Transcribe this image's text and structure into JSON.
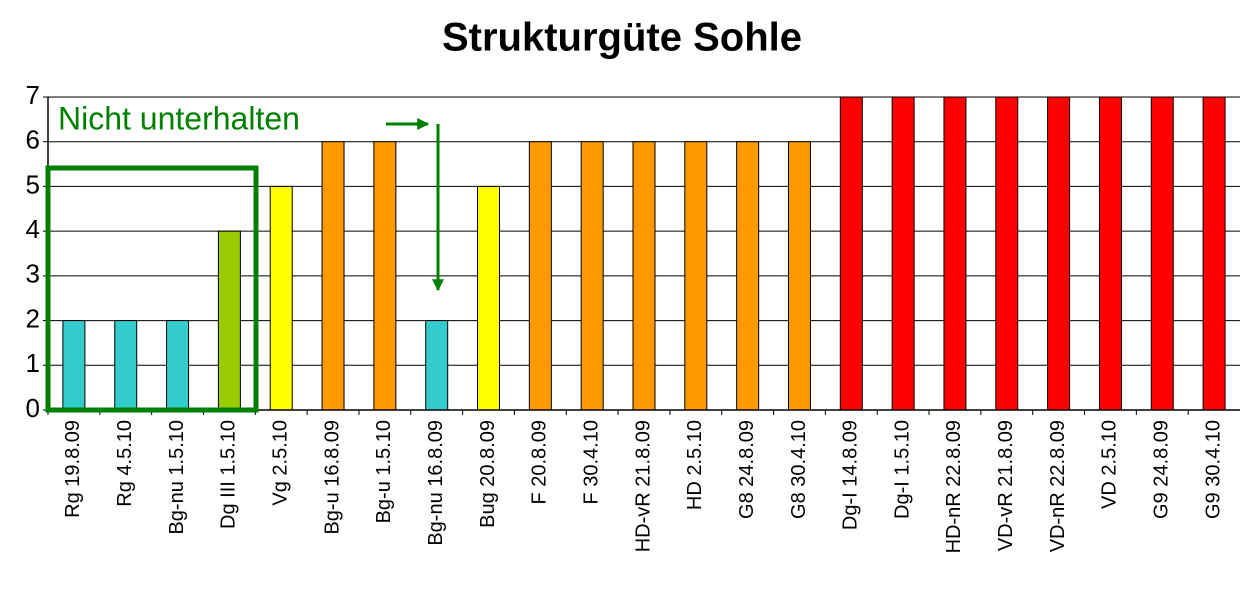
{
  "chart_data": {
    "type": "bar",
    "title": "Strukturgüte Sohle",
    "categories": [
      "Rg 19.8.09",
      "Rg 4.5.10",
      "Bg-nu 1.5.10",
      "Dg III 1.5.10",
      "Vg 2.5.10",
      "Bg-u 16.8.09",
      "Bg-u 1.5.10",
      "Bg-nu 16.8.09",
      "Bug 20.8.09",
      "F 20.8.09",
      "F 30.4.10",
      "HD-vR 21.8.09",
      "HD 2.5.10",
      "G8 24.8.09",
      "G8 30.4.10",
      "Dg-I 14.8.09",
      "Dg-I 1.5.10",
      "HD-nR 22.8.09",
      "VD-vR 21.8.09",
      "VD-nR 22.8.09",
      "VD 2.5.10",
      "G9 24.8.09",
      "G9 30.4.10"
    ],
    "values": [
      2,
      2,
      2,
      4,
      5,
      6,
      6,
      2,
      5,
      6,
      6,
      6,
      6,
      6,
      6,
      7,
      7,
      7,
      7,
      7,
      7,
      7,
      7
    ],
    "colors": [
      "#33cccc",
      "#33cccc",
      "#33cccc",
      "#99cc00",
      "#ffff00",
      "#ff9900",
      "#ff9900",
      "#33cccc",
      "#ffff00",
      "#ff9900",
      "#ff9900",
      "#ff9900",
      "#ff9900",
      "#ff9900",
      "#ff9900",
      "#ff0000",
      "#ff0000",
      "#ff0000",
      "#ff0000",
      "#ff0000",
      "#ff0000",
      "#ff0000",
      "#ff0000"
    ],
    "ylim": [
      0,
      7
    ],
    "yticks": [
      0,
      1,
      2,
      3,
      4,
      5,
      6,
      7
    ],
    "grid": true,
    "annotation": "Nicht unterhalten"
  }
}
